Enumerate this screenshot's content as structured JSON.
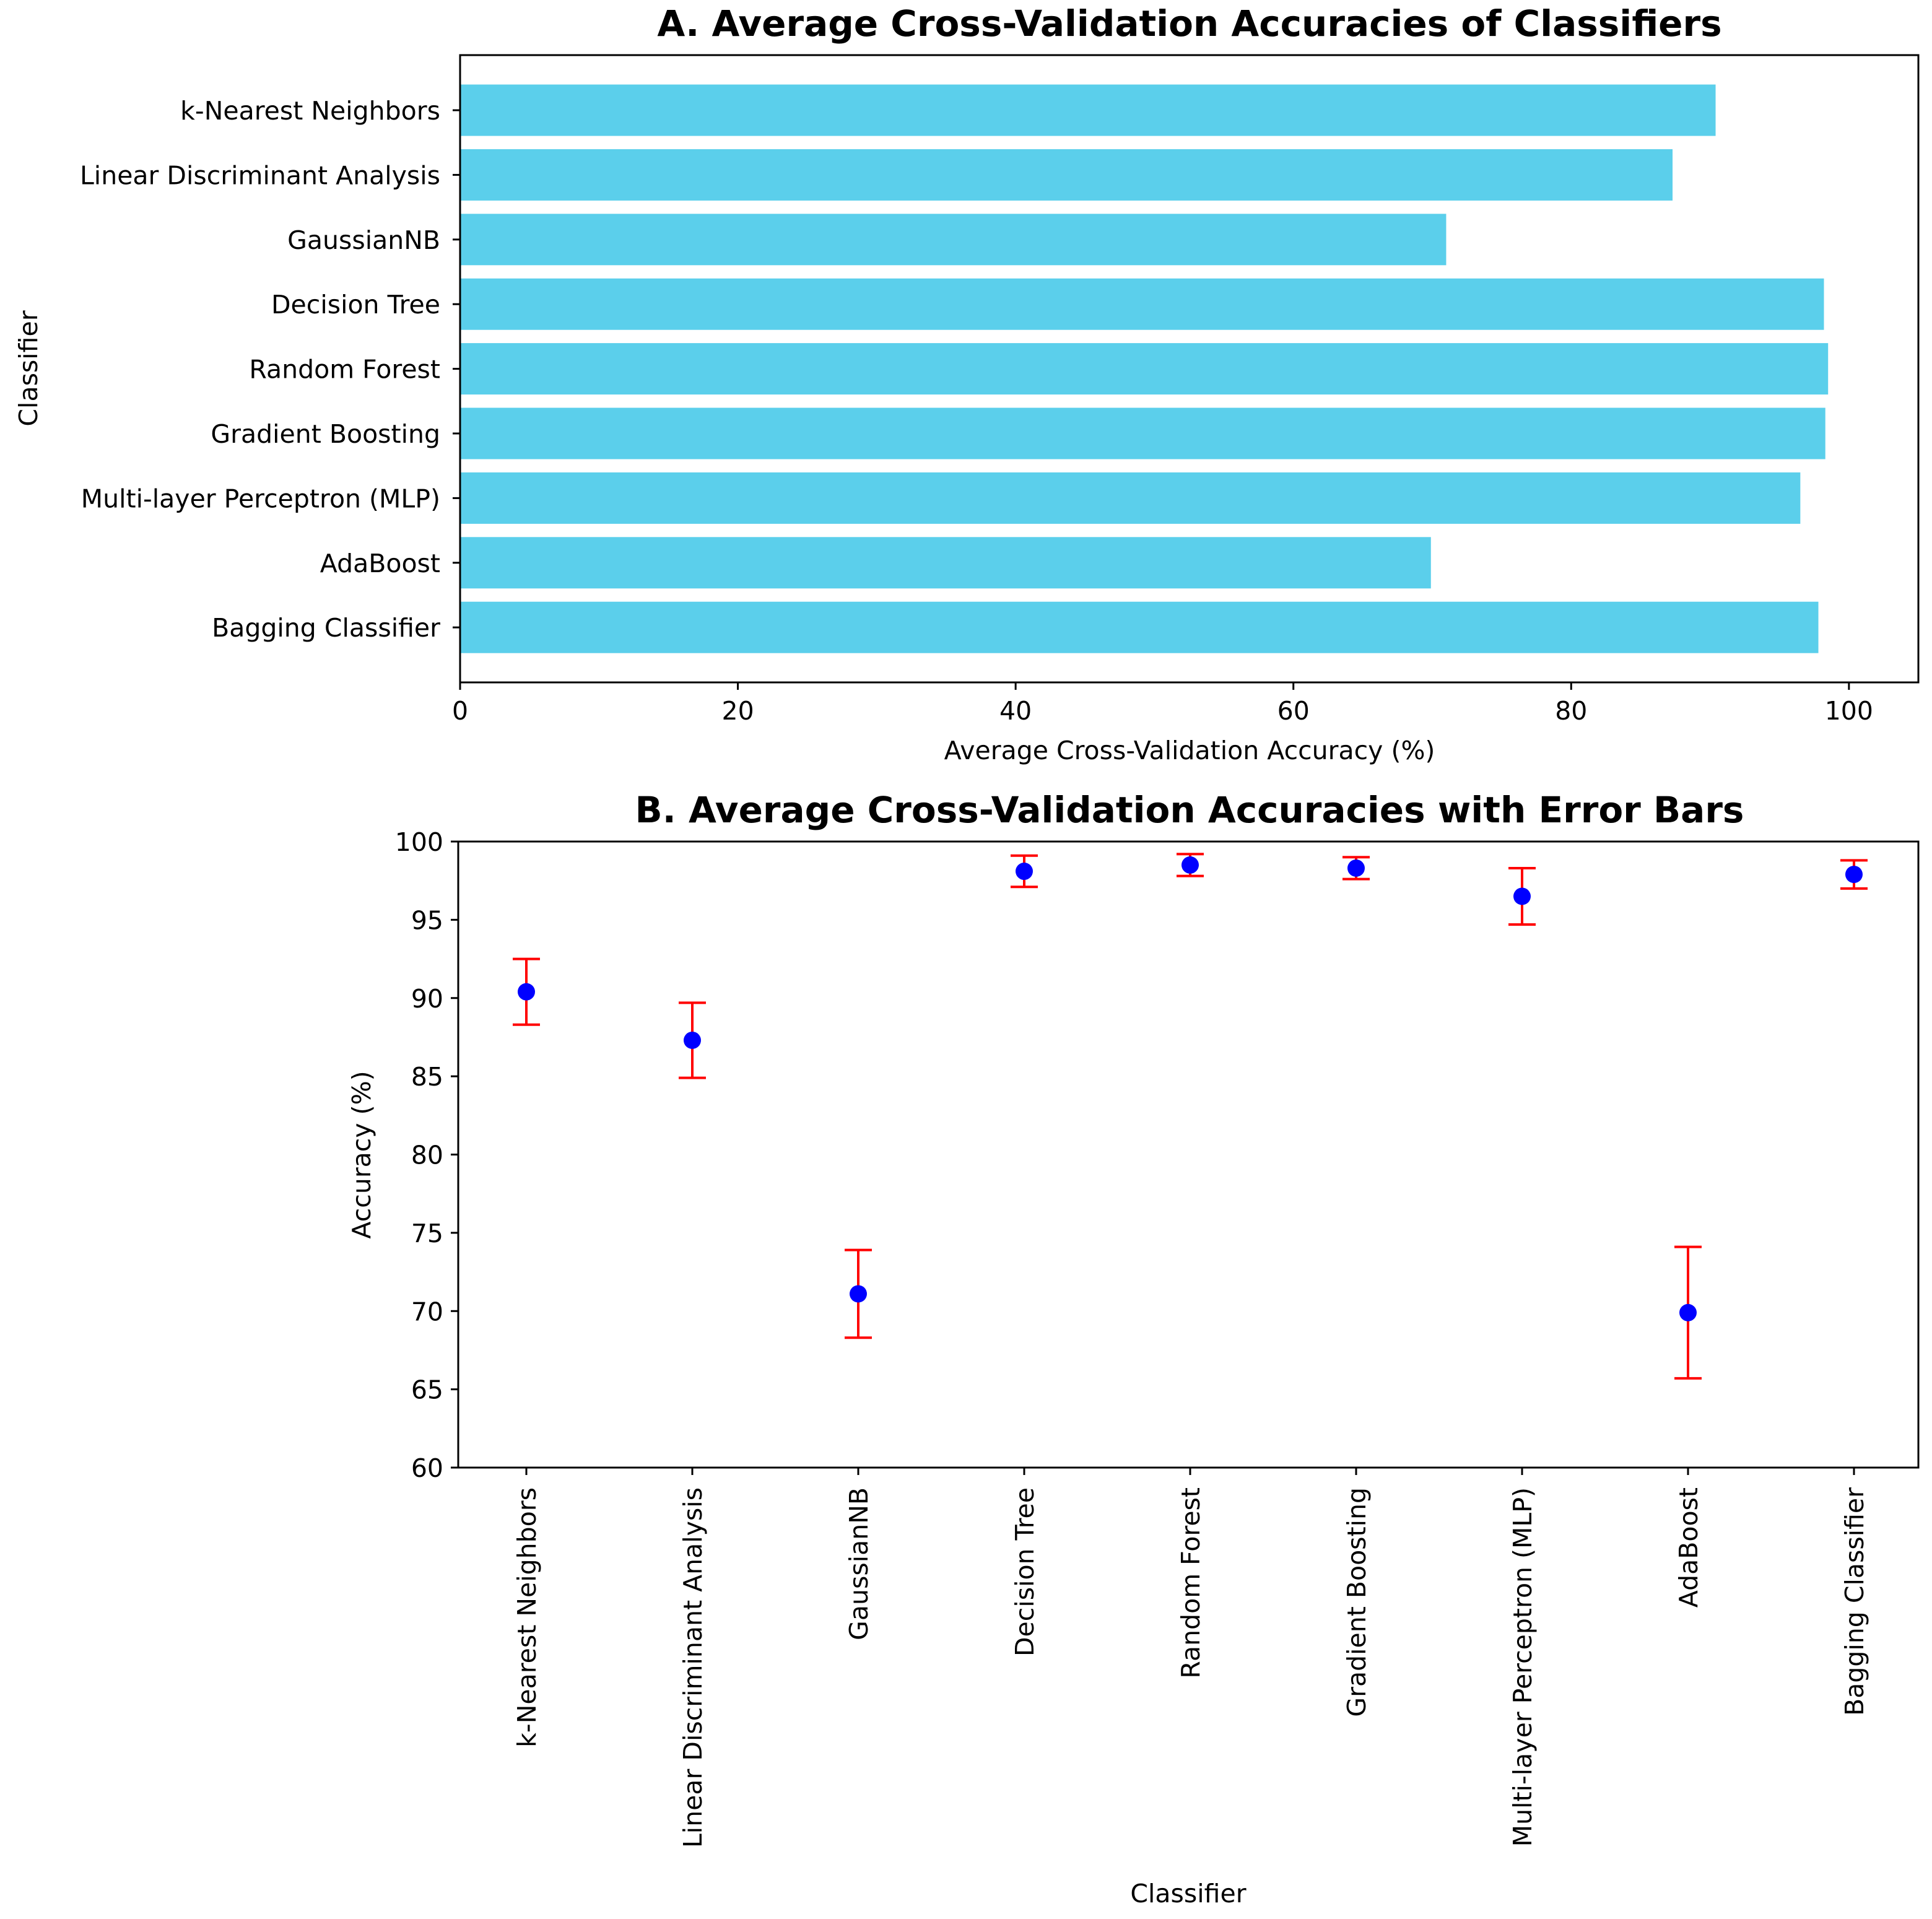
{
  "chart_data": [
    {
      "type": "bar",
      "orientation": "horizontal",
      "title": "A. Average Cross-Validation Accuracies of Classifiers",
      "xlabel": "Average Cross-Validation Accuracy (%)",
      "ylabel": "Classifier",
      "categories": [
        "k-Nearest Neighbors",
        "Linear Discriminant Analysis",
        "GaussianNB",
        "Decision Tree",
        "Random Forest",
        "Gradient Boosting",
        "Multi-layer Perceptron (MLP)",
        "AdaBoost",
        "Bagging Classifier"
      ],
      "values": [
        90.4,
        87.3,
        71.0,
        98.2,
        98.5,
        98.3,
        96.5,
        69.9,
        97.8
      ],
      "xlim": [
        0,
        105
      ],
      "xticks": [
        0,
        20,
        40,
        60,
        80,
        100
      ],
      "bar_color": "#5bcfeb",
      "grid": false
    },
    {
      "type": "scatter",
      "subtype": "errorbar",
      "title": "B. Average Cross-Validation Accuracies with Error Bars",
      "xlabel": "Classifier",
      "ylabel": "Accuracy (%)",
      "categories": [
        "k-Nearest Neighbors",
        "Linear Discriminant Analysis",
        "GaussianNB",
        "Decision Tree",
        "Random Forest",
        "Gradient Boosting",
        "Multi-layer Perceptron (MLP)",
        "AdaBoost",
        "Bagging Classifier"
      ],
      "values": [
        90.4,
        87.3,
        71.1,
        98.1,
        98.5,
        98.3,
        96.5,
        69.9,
        97.9
      ],
      "errors": [
        2.1,
        2.4,
        2.8,
        1.0,
        0.7,
        0.7,
        1.8,
        4.2,
        0.9
      ],
      "ylim": [
        60,
        100
      ],
      "yticks": [
        60,
        65,
        70,
        75,
        80,
        85,
        90,
        95,
        100
      ],
      "marker_color": "#0000ff",
      "error_color": "#ff0000",
      "grid": false
    }
  ]
}
